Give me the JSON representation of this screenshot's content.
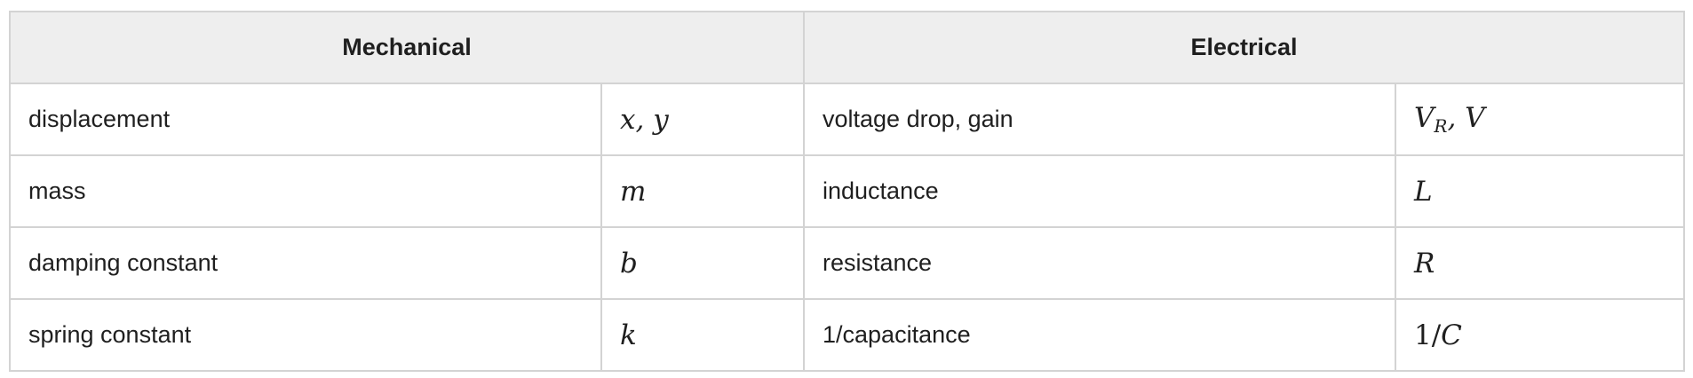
{
  "table": {
    "headers": {
      "mechanical": "Mechanical",
      "electrical": "Electrical"
    },
    "rows": [
      {
        "mech_label": "displacement",
        "mech_symbol": "x, y",
        "elec_label": "voltage drop, gain",
        "elec_symbol_main": "V",
        "elec_symbol_sub": "R",
        "elec_symbol_rest": ", V"
      },
      {
        "mech_label": "mass",
        "mech_symbol": "m",
        "elec_label": "inductance",
        "elec_symbol": "L"
      },
      {
        "mech_label": "damping constant",
        "mech_symbol": "b",
        "elec_label": "resistance",
        "elec_symbol": "R"
      },
      {
        "mech_label": "spring constant",
        "mech_symbol": "k",
        "elec_label": "1/capacitance",
        "elec_symbol_num": "1/",
        "elec_symbol_var": "C"
      }
    ]
  }
}
